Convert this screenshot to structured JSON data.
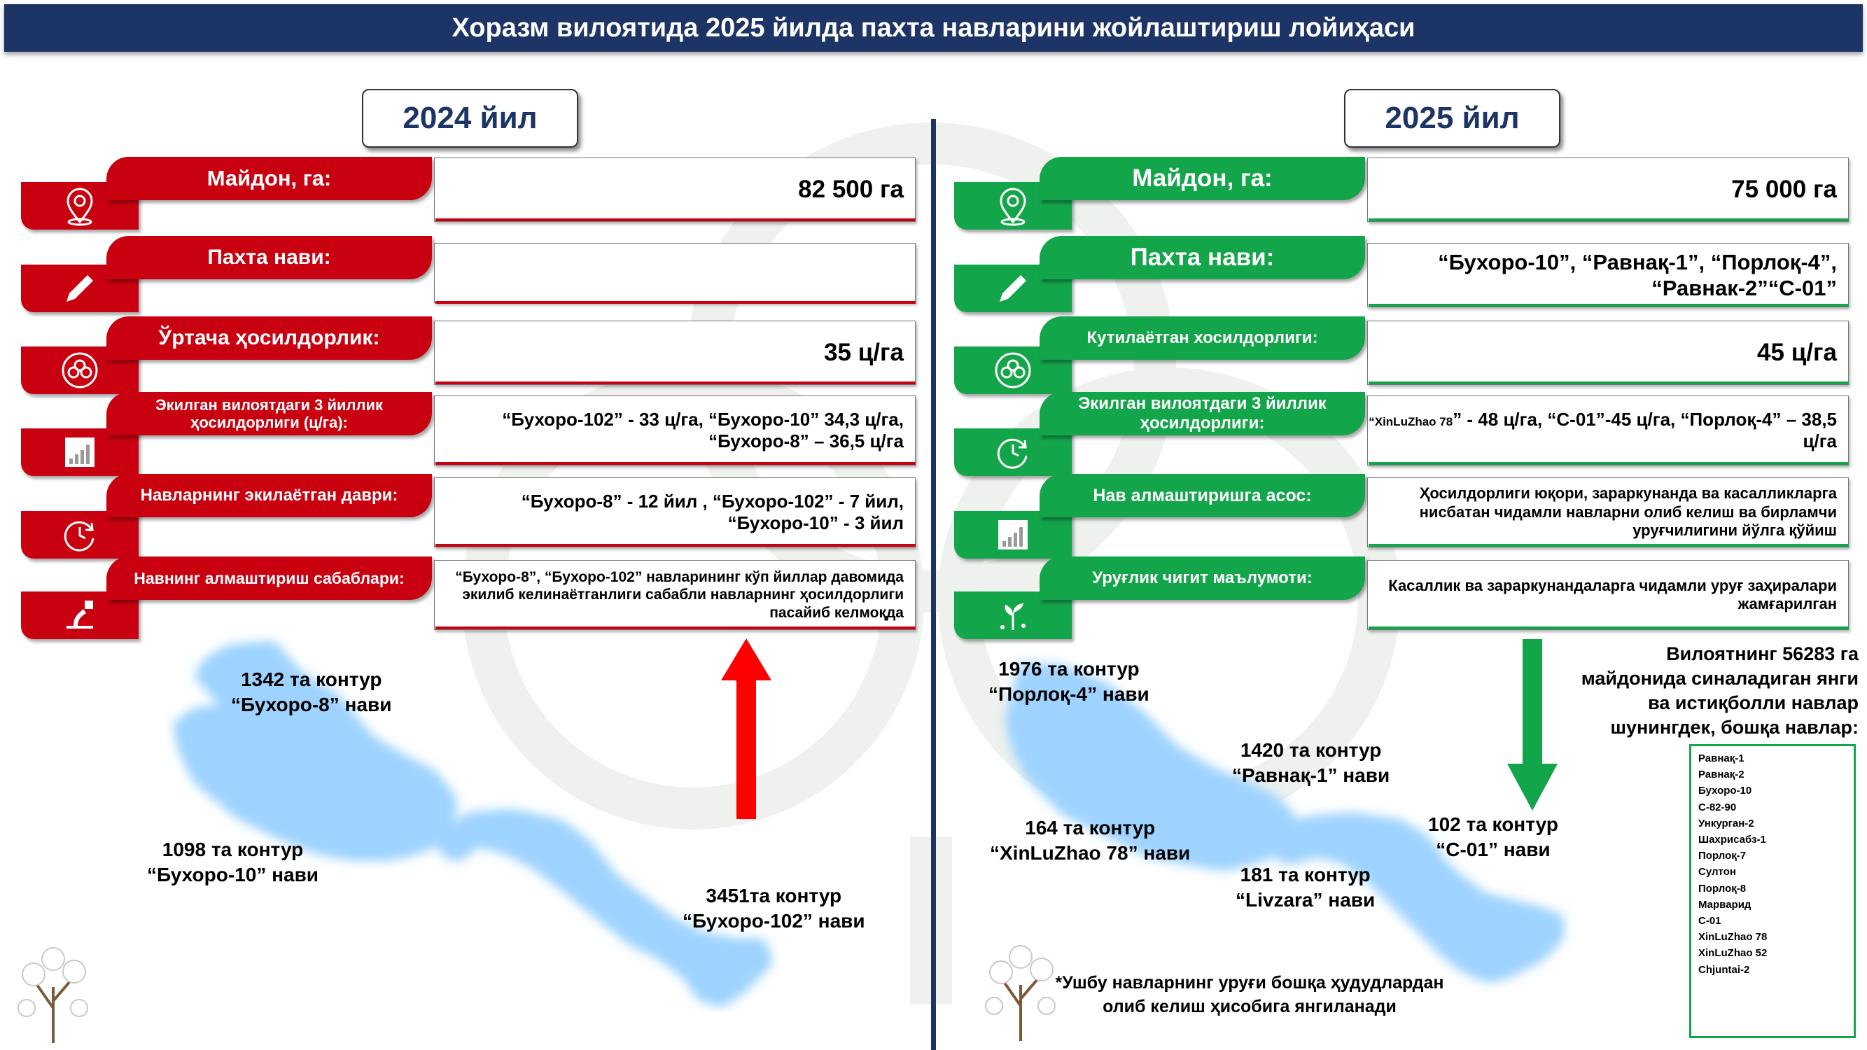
{
  "title": "Хоразм вилоятида 2025 йилда пахта навларини жойлаштириш лойиҳаси",
  "colors": {
    "red": "#c8000f",
    "green": "#13a54a",
    "navy": "#1d3466"
  },
  "left": {
    "year": "2024 йил",
    "rows": [
      {
        "icon": "location-pin-icon",
        "label": "Майдон, га:",
        "value": "82 500 га"
      },
      {
        "icon": "pencil-icon",
        "label": "Пахта нави:",
        "value": ""
      },
      {
        "icon": "cotton-boll-icon",
        "label": "Ўртача ҳосилдорлик:",
        "value": "35 ц/га"
      },
      {
        "icon": "growth-chart-icon",
        "label": "Экилган вилоятдаги 3 йиллик ҳосилдорлиги (ц/га):",
        "value": "“Бухоро-102” - 33 ц/га,  “Бухоро-10” 34,3 ц/га, “Бухоро-8” – 36,5 ц/га"
      },
      {
        "icon": "clock-cycle-icon",
        "label": "Навларнинг экилаётган даври:",
        "value": "“Бухоро-8” - 12 йил , “Бухоро-102” - 7 йил, “Бухоро-10” - 3 йил"
      },
      {
        "icon": "plant-replace-icon",
        "label": "Навнинг алмаштириш сабаблари:",
        "value": "“Бухоро-8”, “Бухоро-102” навларининг кўп йиллар давомида экилиб келинаётганлиги сабабли навларнинг ҳосилдорлиги пасайиб келмоқда"
      }
    ],
    "map_labels": [
      {
        "line1": "1342 та контур",
        "line2": "“Бухоро-8” нави"
      },
      {
        "line1": "1098 та контур",
        "line2": "“Бухоро-10” нави"
      },
      {
        "line1": "3451та контур",
        "line2": "“Бухоро-102” нави"
      }
    ]
  },
  "right": {
    "year": "2025 йил",
    "rows": [
      {
        "icon": "location-pin-icon",
        "label": "Майдон, га:",
        "value": "75 000 га"
      },
      {
        "icon": "pencil-icon",
        "label": "Пахта нави:",
        "value": "“Бухоро-10”, “Равнақ-1”, “Порлоқ-4”, “Равнак-2”“С-01”"
      },
      {
        "icon": "cotton-boll-icon",
        "label": "Кутилаётган хосилдорлиги:",
        "value": "45 ц/га"
      },
      {
        "icon": "clock-cycle-icon",
        "label": "Экилган вилоятдаги 3 йиллик ҳосилдорлиги:",
        "value_prefix": "“XinLuZhao 78",
        "value": "” - 48 ц/га, “С-01”-45 ц/га, “Порлоқ-4” – 38,5 ц/га"
      },
      {
        "icon": "growth-chart-icon",
        "label": "Нав алмаштиришга асос:",
        "value": "Ҳосилдорлиги юқори,  зараркунанда ва касалликларга нисбатан чидамли навларни олиб келиш ва бирламчи уруғчилигини йўлга қўйиш"
      },
      {
        "icon": "seedling-icon",
        "label": "Уруғлик чигит маълумоти:",
        "value": "Касаллик ва зараркунандаларга чидамли уруғ заҳиралари жамғарилган"
      }
    ],
    "map_labels": [
      {
        "line1": "1976 та контур",
        "line2": "“Порлоқ-4” нави"
      },
      {
        "line1": "1420 та контур",
        "line2": "“Равнақ-1” нави"
      },
      {
        "line1": "164 та контур",
        "line2": "“XinLuZhao 78” нави"
      },
      {
        "line1": "181 та контур",
        "line2": "“Livzara” нави"
      },
      {
        "line1": "102 та контур",
        "line2": "“С-01” нави"
      }
    ],
    "note": "Вилоятнинг 56283 га майдонида синаладиган янги ва истиқболли навлар шунингдек, бошқа навлар:",
    "varieties": [
      "Равнақ-1",
      "Равнақ-2",
      "Бухоро-10",
      "С-82-90",
      "Ункурган-2",
      "Шахрисабз-1",
      "Порлоқ-7",
      "Султон",
      "Порлоқ-8",
      "Марварид",
      "С-01",
      "XinLuZhao 78",
      "XinLuZhao 52",
      "Chjuntai-2"
    ],
    "footnote": "*Ушбу навларнинг уруғи бошқа ҳудудлардан олиб келиш ҳисобига янгиланади"
  }
}
